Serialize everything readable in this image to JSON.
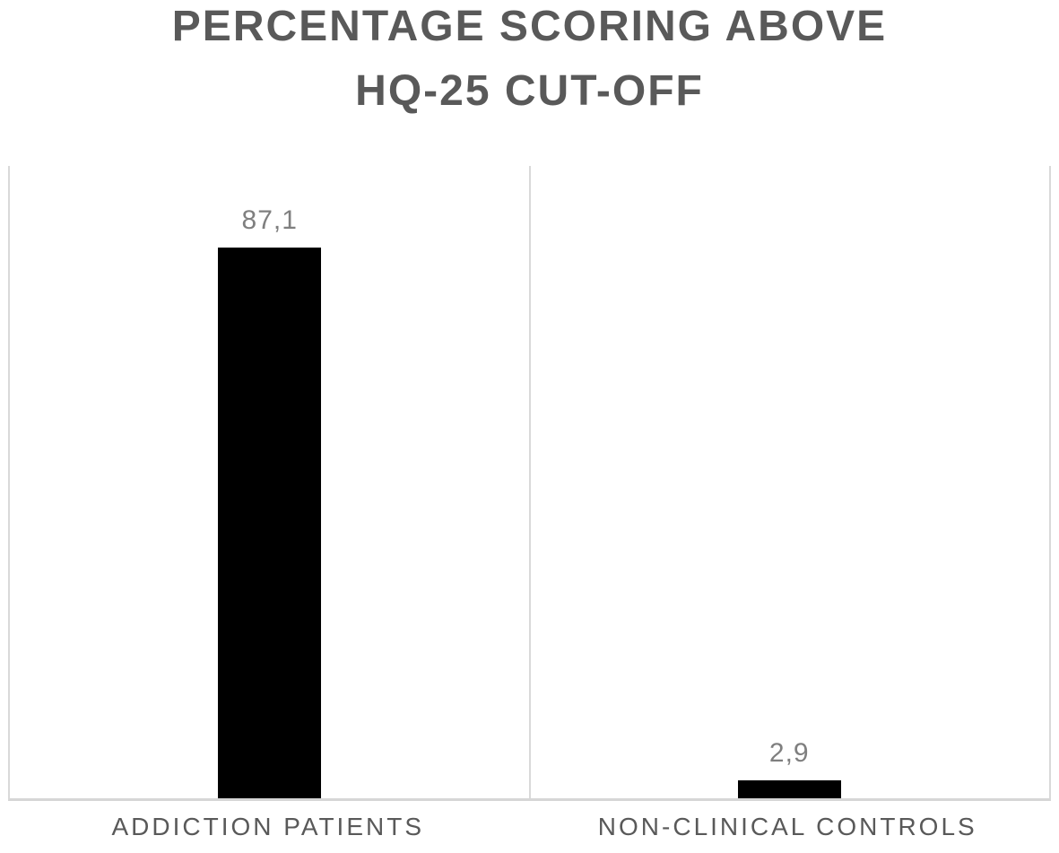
{
  "chart_data": {
    "type": "bar",
    "title": "PERCENTAGE SCORING ABOVE HQ-25 CUT-OFF",
    "title_lines": [
      "PERCENTAGE SCORING ABOVE",
      "HQ-25 CUT-OFF"
    ],
    "categories": [
      "ADDICTION PATIENTS",
      "NON-CLINICAL CONTROLS"
    ],
    "values": [
      87.1,
      2.9
    ],
    "value_labels": [
      "87,1",
      "2,9"
    ],
    "decimal_separator": ",",
    "xlabel": "",
    "ylabel": "",
    "ylim": [
      0,
      100
    ],
    "grid": "category separator lines only, no horizontal gridlines, no y-axis tick labels",
    "legend_position": "none",
    "colors": {
      "bar_fill": "#000000",
      "title_text": "#595959",
      "value_label_text": "#7f7f7f",
      "category_label_text": "#595959",
      "axis_lines": "#d9d9d9",
      "background": "#ffffff"
    }
  }
}
